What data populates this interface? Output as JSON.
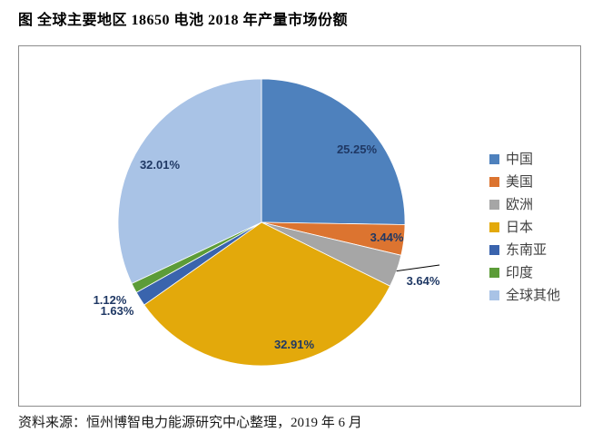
{
  "title": "图 全球主要地区 18650 电池 2018 年产量市场份额",
  "source": "资料来源：恒州博智电力能源研究中心整理，2019 年 6 月",
  "chart_data": {
    "type": "pie",
    "title": "全球主要地区 18650 电池 2018 年产量市场份额",
    "unit": "percent",
    "start_angle_deg": 0,
    "direction": "clockwise",
    "legend_position": "right",
    "label_color": "#1f3864",
    "leader_line_color": "#000000",
    "frame_border_color": "#8c8c8c",
    "slices": [
      {
        "label": "中国",
        "value": 25.25,
        "display": "25.25%",
        "color": "#4e81bd",
        "label_placement": "inside"
      },
      {
        "label": "美国",
        "value": 3.44,
        "display": "3.44%",
        "color": "#dc7430",
        "label_placement": "inside"
      },
      {
        "label": "欧洲",
        "value": 3.64,
        "display": "3.64%",
        "color": "#a6a6a6",
        "label_placement": "outside-leader"
      },
      {
        "label": "日本",
        "value": 32.91,
        "display": "32.91%",
        "color": "#e3a90b",
        "label_placement": "inside"
      },
      {
        "label": "东南亚",
        "value": 1.63,
        "display": "1.63%",
        "color": "#3a64ad",
        "label_placement": "outside"
      },
      {
        "label": "印度",
        "value": 1.12,
        "display": "1.12%",
        "color": "#5c9c38",
        "label_placement": "outside"
      },
      {
        "label": "全球其他",
        "value": 32.01,
        "display": "32.01%",
        "color": "#a9c3e6",
        "label_placement": "inside"
      }
    ]
  }
}
